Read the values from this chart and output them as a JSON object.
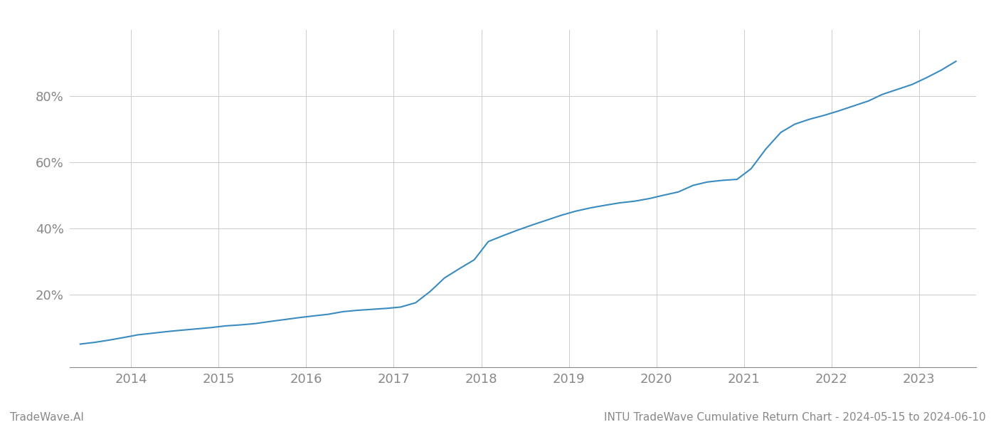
{
  "title": "INTU TradeWave Cumulative Return Chart - 2024-05-15 to 2024-06-10",
  "watermark": "TradeWave.AI",
  "line_color": "#3a8bbf",
  "background_color": "#ffffff",
  "grid_color": "#cccccc",
  "x_years": [
    2014,
    2015,
    2016,
    2017,
    2018,
    2019,
    2020,
    2021,
    2022,
    2023
  ],
  "x_values": [
    2013.42,
    2013.58,
    2013.75,
    2013.92,
    2014.08,
    2014.25,
    2014.42,
    2014.58,
    2014.75,
    2014.92,
    2015.08,
    2015.25,
    2015.42,
    2015.58,
    2015.75,
    2015.92,
    2016.08,
    2016.25,
    2016.42,
    2016.58,
    2016.75,
    2016.92,
    2017.08,
    2017.25,
    2017.42,
    2017.58,
    2017.75,
    2017.92,
    2018.08,
    2018.25,
    2018.42,
    2018.58,
    2018.75,
    2018.92,
    2019.08,
    2019.25,
    2019.42,
    2019.58,
    2019.75,
    2019.92,
    2020.08,
    2020.25,
    2020.42,
    2020.58,
    2020.75,
    2020.92,
    2021.08,
    2021.25,
    2021.42,
    2021.58,
    2021.75,
    2021.92,
    2022.08,
    2022.25,
    2022.42,
    2022.58,
    2022.75,
    2022.92,
    2023.08,
    2023.25,
    2023.42
  ],
  "y_values": [
    0.05,
    0.055,
    0.062,
    0.07,
    0.078,
    0.083,
    0.088,
    0.092,
    0.096,
    0.1,
    0.105,
    0.108,
    0.112,
    0.118,
    0.124,
    0.13,
    0.135,
    0.14,
    0.148,
    0.152,
    0.155,
    0.158,
    0.162,
    0.175,
    0.21,
    0.25,
    0.278,
    0.305,
    0.36,
    0.378,
    0.395,
    0.41,
    0.425,
    0.44,
    0.452,
    0.462,
    0.47,
    0.477,
    0.482,
    0.49,
    0.5,
    0.51,
    0.53,
    0.54,
    0.545,
    0.548,
    0.58,
    0.64,
    0.69,
    0.715,
    0.73,
    0.742,
    0.755,
    0.77,
    0.785,
    0.805,
    0.82,
    0.835,
    0.855,
    0.878,
    0.905
  ],
  "yticks": [
    0.2,
    0.4,
    0.6,
    0.8
  ],
  "ytick_labels": [
    "20%",
    "40%",
    "60%",
    "80%"
  ],
  "xlim": [
    2013.3,
    2023.65
  ],
  "ylim": [
    -0.02,
    1.0
  ],
  "title_fontsize": 11,
  "watermark_fontsize": 11,
  "tick_fontsize": 13,
  "tick_color": "#888888",
  "spine_color": "#888888"
}
